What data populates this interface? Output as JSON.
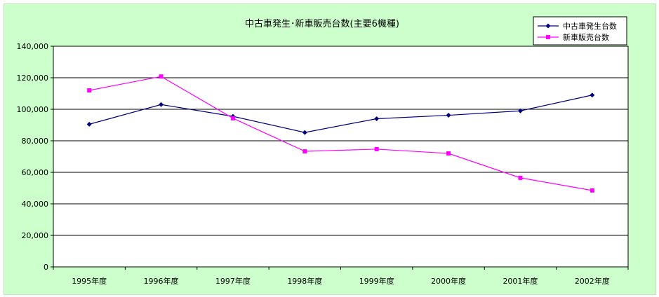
{
  "chart_data": {
    "type": "line",
    "title": "中古車発生･新車販売台数(主要6機種)",
    "categories": [
      "1995年度",
      "1996年度",
      "1997年度",
      "1998年度",
      "1999年度",
      "2000年度",
      "2001年度",
      "2002年度"
    ],
    "series": [
      {
        "name": "中古車発生台数",
        "color": "#000080",
        "marker": "diamond",
        "values": [
          90500,
          103000,
          95500,
          85300,
          94000,
          96200,
          99000,
          109000
        ]
      },
      {
        "name": "新車販売台数",
        "color": "#ff00ff",
        "marker": "square",
        "values": [
          112000,
          120800,
          94300,
          73300,
          74700,
          72000,
          56500,
          48500
        ]
      }
    ],
    "ylim": [
      0,
      140000
    ],
    "ytick_values": [
      0,
      20000,
      40000,
      60000,
      80000,
      100000,
      120000,
      140000
    ],
    "ytick_labels": [
      "0",
      "20,000",
      "40,000",
      "60,000",
      "80,000",
      "100,000",
      "120,000",
      "140,000"
    ],
    "grid": "horizontal",
    "legend_position": "top-right",
    "colors": {
      "background": "#ccffcc",
      "plot_area": "#ffffff",
      "grid": "#000000"
    }
  }
}
